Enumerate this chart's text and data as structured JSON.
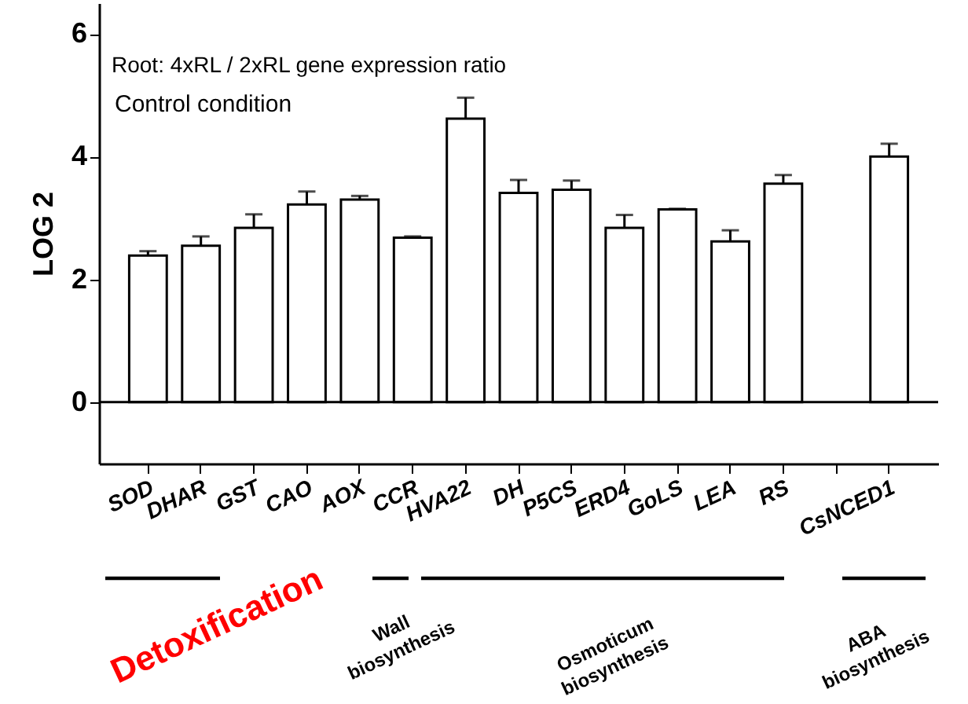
{
  "chart_data": {
    "type": "bar",
    "ylabel": "LOG 2",
    "annotations": [
      "Root: 4xRL / 2xRL gene expression ratio",
      "Control condition",
      "Detoxification",
      "Wall biosynthesis",
      "Osmoticum biosynthesis",
      "ABA biosynthesis"
    ],
    "categories": [
      "SOD",
      "DHAR",
      "GST",
      "CAO",
      "AOX",
      "CCR",
      "HVA22",
      "DH",
      "P5CS",
      "ERD4",
      "GoLS",
      "LEA",
      "RS",
      null,
      "CsNCED1"
    ],
    "series": [
      {
        "color": "#ffffff",
        "values": [
          2.39,
          2.55,
          2.84,
          3.22,
          3.3,
          2.68,
          4.62,
          3.41,
          3.46,
          2.84,
          3.14,
          2.62,
          3.56,
          null,
          4.0
        ],
        "errors": [
          [
            2.39,
            2.46
          ],
          [
            2.55,
            2.7
          ],
          [
            2.84,
            3.06
          ],
          [
            3.22,
            3.43
          ],
          [
            3.3,
            3.36
          ],
          [
            2.68,
            2.7
          ],
          [
            4.62,
            4.96
          ],
          [
            3.41,
            3.62
          ],
          [
            3.46,
            3.61
          ],
          [
            2.84,
            3.05
          ],
          [
            3.14,
            3.15
          ],
          [
            2.62,
            2.8
          ],
          [
            3.56,
            3.7
          ],
          null,
          [
            4.0,
            4.21
          ]
        ]
      }
    ],
    "ylim": [
      -1,
      6.5
    ],
    "yticks": [
      0,
      2,
      4,
      6
    ],
    "ref_lines": [
      {
        "axis": "y",
        "value": 0
      }
    ],
    "grid": false
  }
}
